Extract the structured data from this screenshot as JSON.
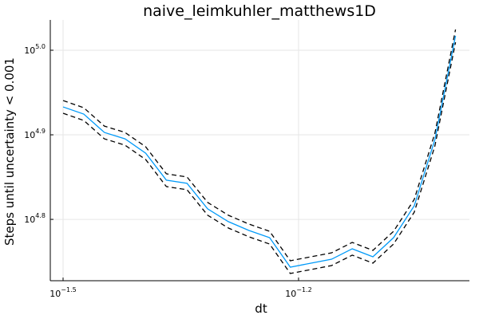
{
  "chart_data": {
    "type": "line",
    "title": "naive_leimkuhler_matthews1D",
    "x_label": "dt",
    "y_label": "Steps until uncertainty < 0.001",
    "xscale": "log",
    "yscale": "log",
    "grid": true,
    "xlim": [
      0.030459,
      0.10416
    ],
    "ylim": [
      53390,
      108600
    ],
    "xticks": [
      {
        "value": 0.031623,
        "label": "10",
        "exponent": "−1.5"
      },
      {
        "value": 0.063096,
        "label": "10",
        "exponent": "−1.2"
      }
    ],
    "yticks": [
      {
        "value": 63095.73,
        "label": "10",
        "exponent": "4.8"
      },
      {
        "value": 79432.82,
        "label": "10",
        "exponent": "4.9"
      },
      {
        "value": 100000,
        "label": "10",
        "exponent": "5.0"
      }
    ],
    "x": [
      0.031623,
      0.033598,
      0.035697,
      0.037927,
      0.040296,
      0.042813,
      0.045487,
      0.048329,
      0.051348,
      0.054556,
      0.057964,
      0.061585,
      0.065432,
      0.069519,
      0.073862,
      0.078476,
      0.083378,
      0.088587,
      0.094121,
      0.1
    ],
    "series": [
      {
        "color": "#000000",
        "dash": true,
        "values": [
          87200,
          85510,
          81340,
          79940,
          76880,
          71430,
          70820,
          66070,
          63810,
          62290,
          61080,
          56370,
          56980,
          57600,
          59260,
          57990,
          61080,
          66610,
          79760,
          105800
        ]
      },
      {
        "color": "#000000",
        "dash": true,
        "values": [
          84230,
          82600,
          78570,
          77220,
          74260,
          68990,
          68400,
          63810,
          61630,
          60170,
          59000,
          54450,
          55040,
          55640,
          57240,
          56010,
          59000,
          64330,
          77040,
          102200
        ]
      },
      {
        "color": "#009af9",
        "dash": false,
        "values": [
          85700,
          84040,
          79940,
          78570,
          75560,
          70200,
          69600,
          64930,
          62710,
          61220,
          60030,
          55400,
          56000,
          56610,
          58240,
          56990,
          60030,
          65460,
          78390,
          104000
        ]
      }
    ]
  }
}
